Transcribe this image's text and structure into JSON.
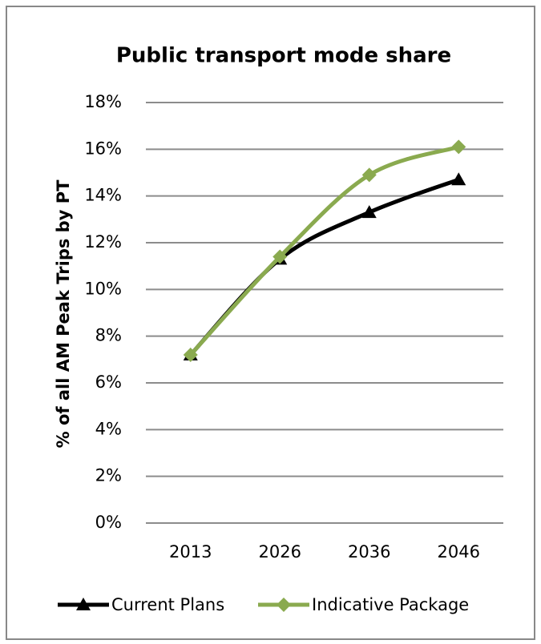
{
  "chart_data": {
    "type": "line",
    "title": "Public transport mode share",
    "y_label": "% of all AM Peak Trips by PT",
    "categories": [
      "2013",
      "2026",
      "2036",
      "2046"
    ],
    "series": [
      {
        "name": "Current Plans",
        "color": "#000000",
        "marker": "triangle",
        "values": [
          7.2,
          11.3,
          13.3,
          14.7
        ]
      },
      {
        "name": "Indicative Package",
        "color": "#8aaa4f",
        "marker": "diamond",
        "values": [
          7.2,
          11.4,
          14.9,
          16.1
        ]
      }
    ],
    "ylim": [
      0,
      18
    ],
    "yticks": [
      {
        "value": 0,
        "label": "0%"
      },
      {
        "value": 2,
        "label": "2%"
      },
      {
        "value": 4,
        "label": "4%"
      },
      {
        "value": 6,
        "label": "6%"
      },
      {
        "value": 8,
        "label": "8%"
      },
      {
        "value": 10,
        "label": "10%"
      },
      {
        "value": 12,
        "label": "12%"
      },
      {
        "value": 14,
        "label": "14%"
      },
      {
        "value": 16,
        "label": "16%"
      },
      {
        "value": 18,
        "label": "18%"
      }
    ],
    "grid": true,
    "smooth": true,
    "legend": "bottom"
  }
}
